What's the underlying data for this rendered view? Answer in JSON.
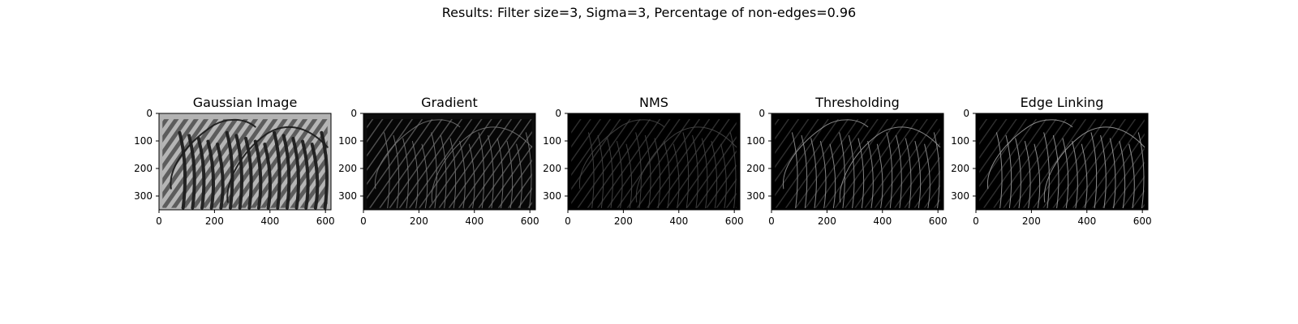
{
  "figure": {
    "suptitle": "Results: Filter size=3, Sigma=3, Percentage of non-edges=0.96"
  },
  "axes": {
    "x_ticks": [
      0,
      200,
      400,
      600
    ],
    "y_ticks": [
      0,
      100,
      200,
      300
    ],
    "x_range": [
      0,
      620
    ],
    "y_range": [
      0,
      350
    ]
  },
  "panels": [
    {
      "title": "Gaussian Image",
      "image": "grayscale-smoothed-zebras",
      "colors": {
        "bg": "#b3b3b3",
        "stroke": "#1c1c1c"
      }
    },
    {
      "title": "Gradient",
      "image": "gradient-magnitude-zebras",
      "colors": {
        "bg": "#0d0d0d",
        "stroke": "#7a7a7a"
      }
    },
    {
      "title": "NMS",
      "image": "non-max-suppression-zebras",
      "colors": {
        "bg": "#000000",
        "stroke": "#4a4a4a"
      }
    },
    {
      "title": "Thresholding",
      "image": "thresholded-edges-zebras",
      "colors": {
        "bg": "#000000",
        "stroke": "#9a9a9a"
      }
    },
    {
      "title": "Edge Linking",
      "image": "linked-edges-zebras",
      "colors": {
        "bg": "#000000",
        "stroke": "#a5a5a5"
      }
    }
  ]
}
